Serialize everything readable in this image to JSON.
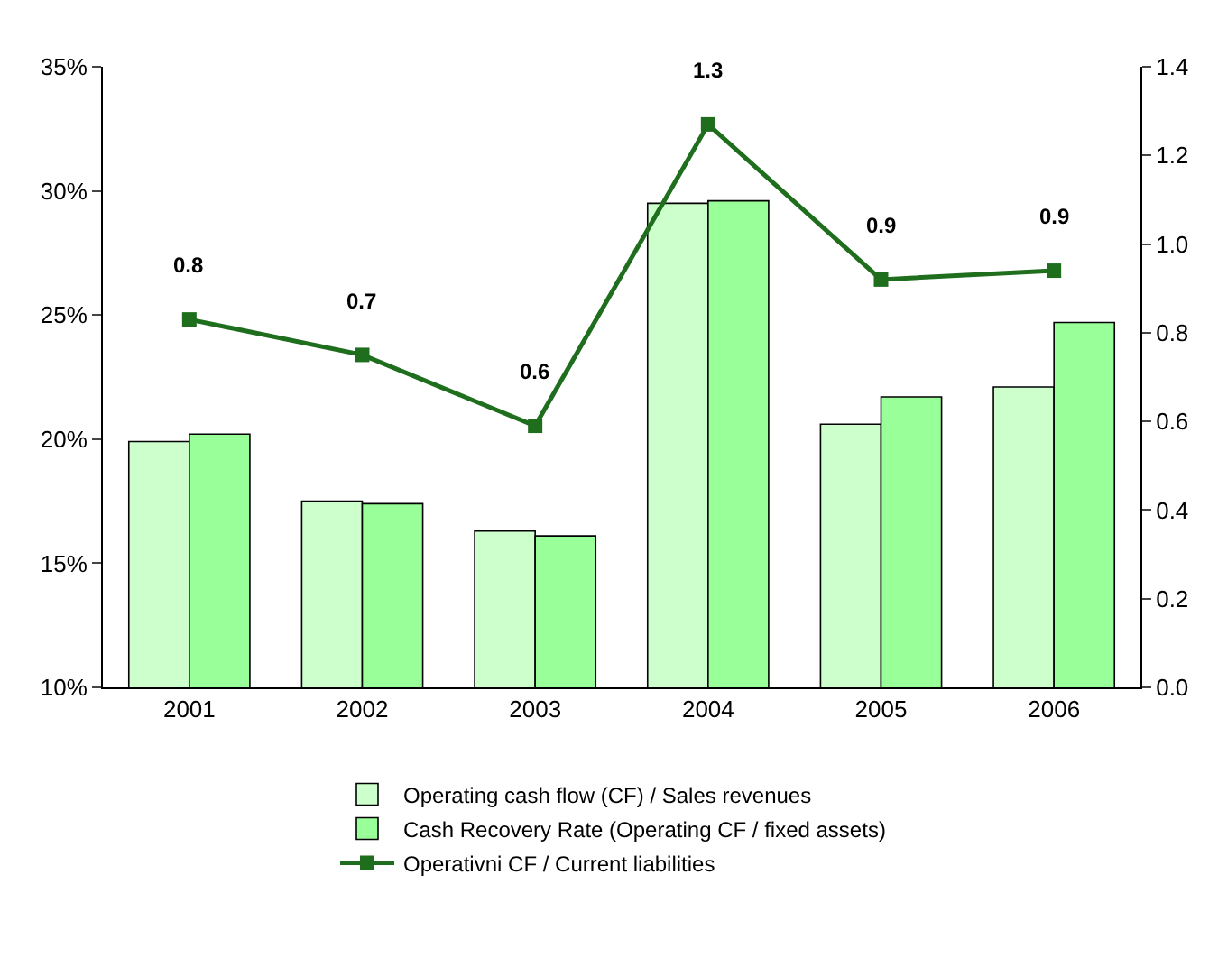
{
  "chart_data": {
    "type": "bar",
    "categories": [
      "2001",
      "2002",
      "2003",
      "2004",
      "2005",
      "2006"
    ],
    "series": [
      {
        "name": "Operating cash flow (CF) / Sales revenues",
        "color": "#ccffcc",
        "values": [
          19.9,
          17.5,
          16.3,
          29.5,
          20.6,
          22.1
        ]
      },
      {
        "name": "Cash Recovery Rate (Operating CF / fixed assets)",
        "color": "#99ff99",
        "values": [
          20.2,
          17.4,
          16.1,
          29.6,
          21.7,
          24.7
        ]
      },
      {
        "name": "Operativni CF / Current liabilities",
        "type": "line",
        "axis": "y2",
        "color": "#1e6e1e",
        "marker": "square",
        "values": [
          0.83,
          0.75,
          0.59,
          1.27,
          0.92,
          0.94
        ],
        "value_labels": [
          "0.8",
          "0.7",
          "0.6",
          "1.3",
          "0.9",
          "0.9"
        ]
      }
    ],
    "ylim": [
      10,
      35
    ],
    "yticks": [
      {
        "value": 10,
        "label": "10%"
      },
      {
        "value": 15,
        "label": "15%"
      },
      {
        "value": 20,
        "label": "20%"
      },
      {
        "value": 25,
        "label": "25%"
      },
      {
        "value": 30,
        "label": "30%"
      },
      {
        "value": 35,
        "label": "35%"
      }
    ],
    "y2lim": [
      0,
      1.4
    ],
    "y2ticks": [
      {
        "value": 0,
        "label": "0.0"
      },
      {
        "value": 0.2,
        "label": "0.2"
      },
      {
        "value": 0.4,
        "label": "0.4"
      },
      {
        "value": 0.6,
        "label": "0.6"
      },
      {
        "value": 0.8,
        "label": "0.8"
      },
      {
        "value": 1.0,
        "label": "1.0"
      },
      {
        "value": 1.2,
        "label": "1.2"
      },
      {
        "value": 1.4,
        "label": "1.4"
      }
    ],
    "legend": "bottom"
  }
}
